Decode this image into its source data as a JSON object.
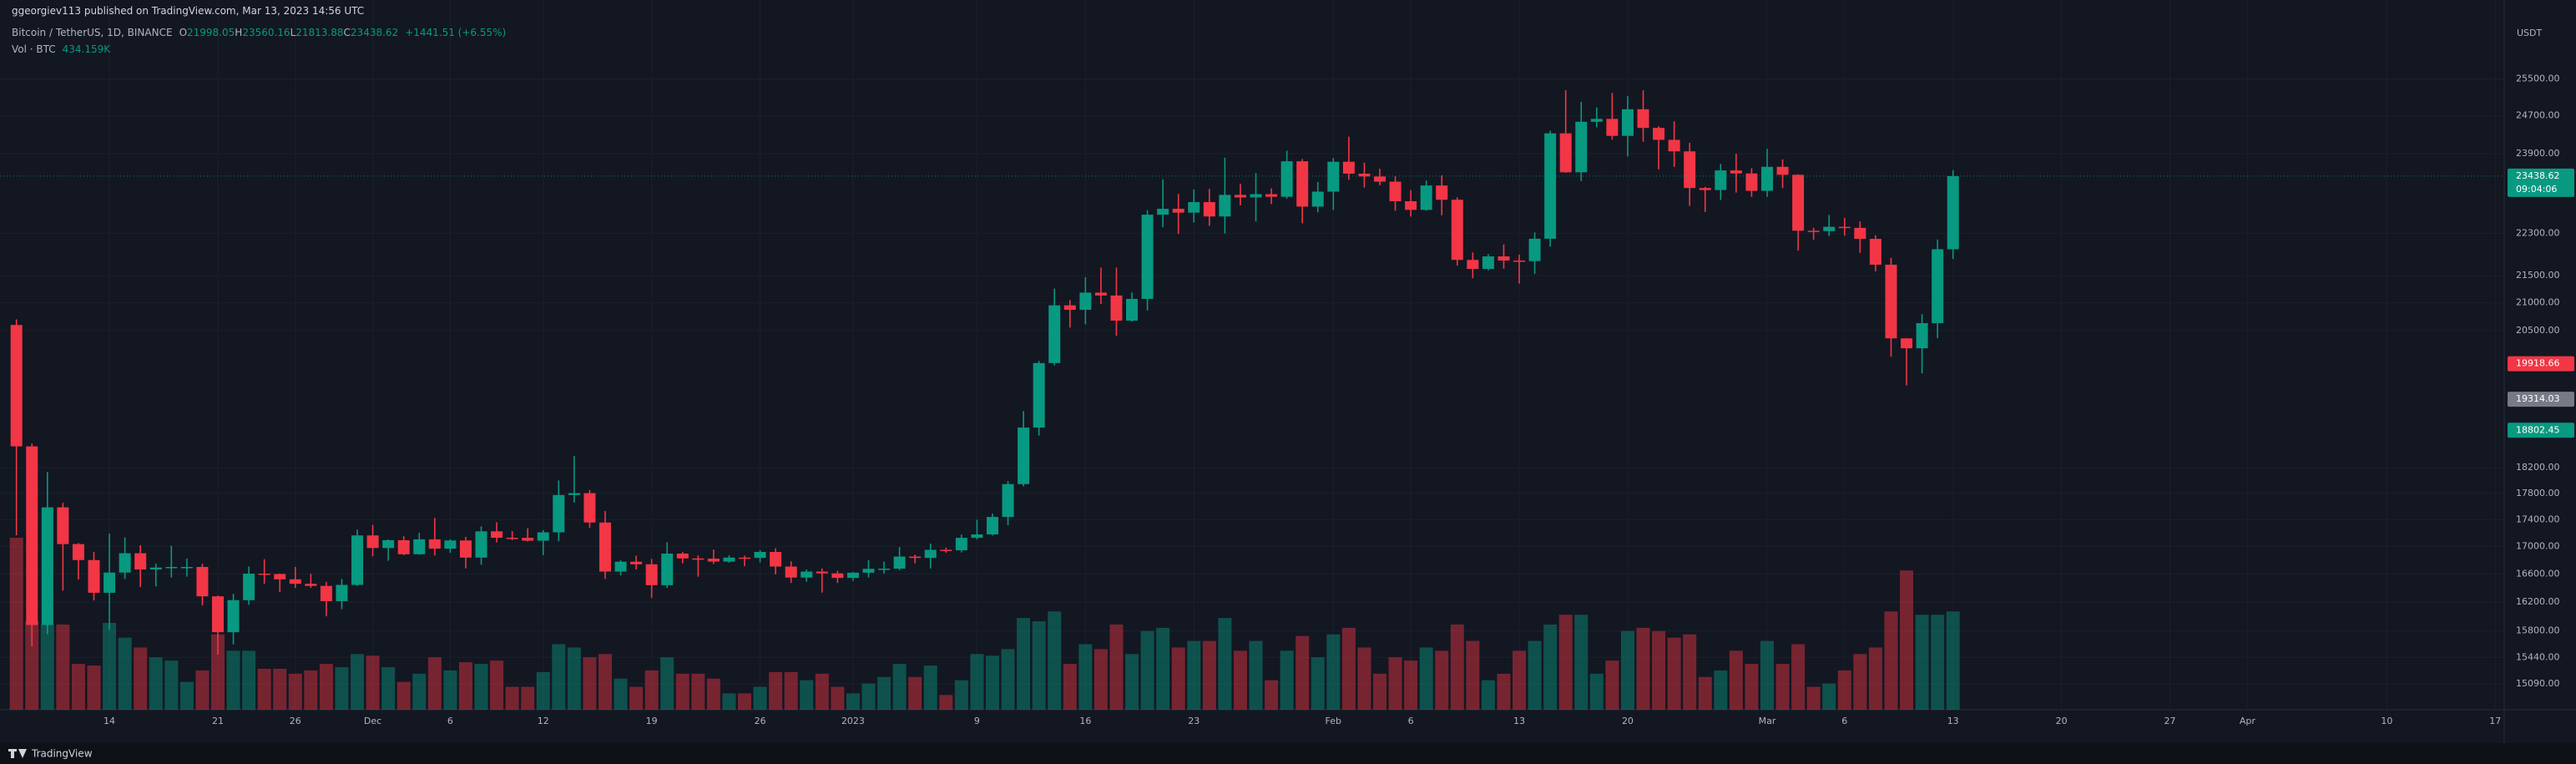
{
  "header": {
    "publisher": "ggeorgiev113 published on TradingView.com, Mar 13, 2023 14:56 UTC",
    "symbol": "Bitcoin / TetherUS, 1D, BINANCE",
    "fields": [
      {
        "key": "O",
        "value": "21998.05"
      },
      {
        "key": "H",
        "value": "23560.16"
      },
      {
        "key": "L",
        "value": "21813.88"
      },
      {
        "key": "C",
        "value": "23438.62"
      }
    ],
    "change": "+1441.51 (+6.55%)",
    "volume_label": "Vol · BTC",
    "volume_value": "434.159K"
  },
  "footer": {
    "brand": "TradingView"
  },
  "chart_data": {
    "type": "candlestick",
    "currency": "USDT",
    "up_color": "#089981",
    "down_color": "#f23645",
    "log": true,
    "grid": true,
    "ylim": [
      14755,
      27306
    ],
    "yticks": [
      {
        "value": 25500,
        "label": "25500.00"
      },
      {
        "value": 24700,
        "label": "24700.00"
      },
      {
        "value": 23900,
        "label": "23900.00"
      },
      {
        "value": 22300,
        "label": "22300.00"
      },
      {
        "value": 21500,
        "label": "21500.00"
      },
      {
        "value": 21000,
        "label": "21000.00"
      },
      {
        "value": 20500,
        "label": "20500.00"
      },
      {
        "value": 18200,
        "label": "18200.00"
      },
      {
        "value": 17800,
        "label": "17800.00"
      },
      {
        "value": 17400,
        "label": "17400.00"
      },
      {
        "value": 17000,
        "label": "17000.00"
      },
      {
        "value": 16600,
        "label": "16600.00"
      },
      {
        "value": 16200,
        "label": "16200.00"
      },
      {
        "value": 15800,
        "label": "15800.00"
      },
      {
        "value": 15440,
        "label": "15440.00"
      },
      {
        "value": 15090,
        "label": "15090.00"
      }
    ],
    "xticks": [
      {
        "value": "2022-11-14",
        "label": "14"
      },
      {
        "value": "2022-11-21",
        "label": "21"
      },
      {
        "value": "2022-11-26",
        "label": "26"
      },
      {
        "value": "2022-12-01",
        "label": "Dec"
      },
      {
        "value": "2022-12-06",
        "label": "6"
      },
      {
        "value": "2022-12-12",
        "label": "12"
      },
      {
        "value": "2022-12-19",
        "label": "19"
      },
      {
        "value": "2022-12-26",
        "label": "26"
      },
      {
        "value": "2023-01-01",
        "label": "2023"
      },
      {
        "value": "2023-01-09",
        "label": "9"
      },
      {
        "value": "2023-01-16",
        "label": "16"
      },
      {
        "value": "2023-01-23",
        "label": "23"
      },
      {
        "value": "2023-02-01",
        "label": "Feb"
      },
      {
        "value": "2023-02-06",
        "label": "6"
      },
      {
        "value": "2023-02-13",
        "label": "13"
      },
      {
        "value": "2023-02-20",
        "label": "20"
      },
      {
        "value": "2023-03-01",
        "label": "Mar"
      },
      {
        "value": "2023-03-06",
        "label": "6"
      },
      {
        "value": "2023-03-13",
        "label": "13"
      },
      {
        "value": "2023-03-20",
        "label": "20"
      },
      {
        "value": "2023-03-27",
        "label": "27"
      },
      {
        "value": "2023-04-01",
        "label": "Apr"
      },
      {
        "value": "2023-04-10",
        "label": "10"
      },
      {
        "value": "2023-04-17",
        "label": "17"
      }
    ],
    "price_labels": [
      {
        "value": 23438.62,
        "color": "#089981",
        "countdown": "09:04:06"
      },
      {
        "value": 19918.66,
        "color": "#f23645"
      },
      {
        "value": 19314.03,
        "color": "#787b86"
      },
      {
        "value": 18802.45,
        "color": "#089981"
      }
    ],
    "x": [
      "2022-11-08",
      "2022-11-09",
      "2022-11-10",
      "2022-11-11",
      "2022-11-12",
      "2022-11-13",
      "2022-11-14",
      "2022-11-15",
      "2022-11-16",
      "2022-11-17",
      "2022-11-18",
      "2022-11-19",
      "2022-11-20",
      "2022-11-21",
      "2022-11-22",
      "2022-11-23",
      "2022-11-24",
      "2022-11-25",
      "2022-11-26",
      "2022-11-27",
      "2022-11-28",
      "2022-11-29",
      "2022-11-30",
      "2022-12-01",
      "2022-12-02",
      "2022-12-03",
      "2022-12-04",
      "2022-12-05",
      "2022-12-06",
      "2022-12-07",
      "2022-12-08",
      "2022-12-09",
      "2022-12-10",
      "2022-12-11",
      "2022-12-12",
      "2022-12-13",
      "2022-12-14",
      "2022-12-15",
      "2022-12-16",
      "2022-12-17",
      "2022-12-18",
      "2022-12-19",
      "2022-12-20",
      "2022-12-21",
      "2022-12-22",
      "2022-12-23",
      "2022-12-24",
      "2022-12-25",
      "2022-12-26",
      "2022-12-27",
      "2022-12-28",
      "2022-12-29",
      "2022-12-30",
      "2022-12-31",
      "2023-01-01",
      "2023-01-02",
      "2023-01-03",
      "2023-01-04",
      "2023-01-05",
      "2023-01-06",
      "2023-01-07",
      "2023-01-08",
      "2023-01-09",
      "2023-01-10",
      "2023-01-11",
      "2023-01-12",
      "2023-01-13",
      "2023-01-14",
      "2023-01-15",
      "2023-01-16",
      "2023-01-17",
      "2023-01-18",
      "2023-01-19",
      "2023-01-20",
      "2023-01-21",
      "2023-01-22",
      "2023-01-23",
      "2023-01-24",
      "2023-01-25",
      "2023-01-26",
      "2023-01-27",
      "2023-01-28",
      "2023-01-29",
      "2023-01-30",
      "2023-01-31",
      "2023-02-01",
      "2023-02-02",
      "2023-02-03",
      "2023-02-04",
      "2023-02-05",
      "2023-02-06",
      "2023-02-07",
      "2023-02-08",
      "2023-02-09",
      "2023-02-10",
      "2023-02-11",
      "2023-02-12",
      "2023-02-13",
      "2023-02-14",
      "2023-02-15",
      "2023-02-16",
      "2023-02-17",
      "2023-02-18",
      "2023-02-19",
      "2023-02-20",
      "2023-02-21",
      "2023-02-22",
      "2023-02-23",
      "2023-02-24",
      "2023-02-25",
      "2023-02-26",
      "2023-02-27",
      "2023-02-28",
      "2023-03-01",
      "2023-03-02",
      "2023-03-03",
      "2023-03-04",
      "2023-03-05",
      "2023-03-06",
      "2023-03-07",
      "2023-03-08",
      "2023-03-09",
      "2023-03-10",
      "2023-03-11",
      "2023-03-12",
      "2023-03-13"
    ],
    "open": [
      20600,
      18541,
      15880,
      17586,
      17034,
      16800,
      16330,
      16619,
      16900,
      16663,
      16692,
      16700,
      16700,
      16280,
      15781,
      16226,
      16603,
      16598,
      16522,
      16458,
      16428,
      16212,
      16442,
      17163,
      16977,
      17092,
      16885,
      17105,
      16967,
      17088,
      16836,
      17224,
      17128,
      17127,
      17085,
      17209,
      17775,
      17804,
      17356,
      16633,
      16776,
      16739,
      16438,
      16895,
      16824,
      16821,
      16778,
      16836,
      16832,
      16919,
      16706,
      16547,
      16633,
      16607,
      16542,
      16617,
      16673,
      16675,
      16851,
      16831,
      16950,
      16943,
      17127,
      17178,
      17440,
      17944,
      18846,
      19930,
      20954,
      20872,
      21186,
      21133,
      20677,
      21071,
      22667,
      22783,
      22707,
      22916,
      22632,
      23060,
      23009,
      23074,
      23022,
      23742,
      22827,
      23125,
      23732,
      23488,
      23431,
      23326,
      22933,
      22762,
      23249,
      22963,
      21796,
      21625,
      21862,
      21783,
      21773,
      22199,
      24324,
      23517,
      24569,
      24631,
      24271,
      24838,
      24439,
      24188,
      23947,
      23198,
      23157,
      23554,
      23492,
      23141,
      23628,
      23465,
      22354,
      22346,
      22430,
      22410,
      22197,
      21705,
      20362,
      20187,
      20632,
      21998.05
    ],
    "high": [
      20700,
      18587,
      18132,
      17655,
      17049,
      16920,
      17190,
      17134,
      17019,
      16747,
      17011,
      16820,
      16746,
      16292,
      16315,
      16706,
      16812,
      16605,
      16701,
      16600,
      16485,
      16525,
      17250,
      17320,
      17105,
      17150,
      17203,
      17424,
      17107,
      17142,
      17299,
      17360,
      17227,
      17270,
      17241,
      18000,
      18387,
      17854,
      17531,
      16796,
      16864,
      16816,
      17061,
      16917,
      16866,
      16954,
      16869,
      16865,
      16944,
      16972,
      16783,
      16664,
      16677,
      16644,
      16628,
      16799,
      16778,
      16991,
      16879,
      17041,
      16981,
      17176,
      17398,
      17491,
      17990,
      19117,
      19966,
      21258,
      21050,
      21474,
      21650,
      21650,
      21188,
      22755,
      23371,
      23078,
      23170,
      23180,
      23816,
      23282,
      23500,
      23189,
      23960,
      23789,
      23320,
      23812,
      24255,
      23715,
      23587,
      23433,
      23158,
      23350,
      23453,
      23011,
      21938,
      21906,
      22090,
      21894,
      22320,
      24380,
      25250,
      24998,
      24877,
      25192,
      25121,
      25250,
      24476,
      24580,
      24124,
      23220,
      23689,
      23897,
      23600,
      24000,
      23780,
      23476,
      22410,
      22662,
      22603,
      22535,
      22267,
      21834,
      20367,
      20792,
      22185,
      23560.16
    ],
    "low": [
      17166,
      15588,
      15754,
      16361,
      16520,
      16222,
      15815,
      16527,
      16412,
      16421,
      16547,
      16560,
      16152,
      15476,
      15616,
      16160,
      16458,
      16342,
      16400,
      16400,
      16000,
      16100,
      16428,
      16855,
      16790,
      16871,
      16878,
      16867,
      16906,
      16678,
      16733,
      17058,
      17092,
      17071,
      16871,
      17076,
      17660,
      17275,
      16527,
      16580,
      16663,
      16256,
      16398,
      16751,
      16560,
      16743,
      16760,
      16710,
      16764,
      16592,
      16470,
      16488,
      16333,
      16470,
      16499,
      16548,
      16605,
      16652,
      16753,
      16679,
      16908,
      16911,
      17104,
      17162,
      17315,
      17910,
      18714,
      19889,
      20552,
      20611,
      20978,
      20407,
      20659,
      20861,
      22422,
      22292,
      22513,
      22450,
      22300,
      22850,
      22534,
      22878,
      22985,
      22500,
      22714,
      22760,
      23363,
      23206,
      23253,
      22745,
      22628,
      22745,
      22655,
      21688,
      21451,
      21599,
      21630,
      21351,
      21532,
      22047,
      23505,
      23339,
      24450,
      24192,
      23840,
      24148,
      23574,
      23627,
      22841,
      22722,
      22959,
      23106,
      23020,
      23020,
      23195,
      21971,
      22180,
      22250,
      22258,
      21927,
      21580,
      20040,
      19549,
      19750,
      20367,
      21813.88
    ],
    "close": [
      18541,
      15880,
      17586,
      17034,
      16800,
      16330,
      16619,
      16900,
      16663,
      16692,
      16700,
      16700,
      16280,
      15781,
      16226,
      16603,
      16598,
      16522,
      16458,
      16428,
      16212,
      16442,
      17163,
      16977,
      17092,
      16885,
      17105,
      16967,
      17088,
      16836,
      17224,
      17128,
      17127,
      17085,
      17209,
      17775,
      17804,
      17356,
      16633,
      16776,
      16739,
      16438,
      16895,
      16824,
      16821,
      16778,
      16836,
      16832,
      16919,
      16706,
      16547,
      16633,
      16607,
      16542,
      16617,
      16673,
      16675,
      16851,
      16831,
      16950,
      16943,
      17127,
      17178,
      17440,
      17944,
      18846,
      19930,
      20954,
      20872,
      21186,
      21133,
      20677,
      21071,
      22667,
      22783,
      22707,
      22916,
      22632,
      23060,
      23009,
      23074,
      23022,
      23742,
      22827,
      23125,
      23732,
      23488,
      23431,
      23326,
      22933,
      22762,
      23249,
      22963,
      21796,
      21625,
      21862,
      21783,
      21773,
      22199,
      24324,
      23517,
      24569,
      24631,
      24271,
      24838,
      24439,
      24188,
      23947,
      23198,
      23157,
      23554,
      23492,
      23141,
      23628,
      23465,
      22354,
      22346,
      22430,
      22410,
      22197,
      21705,
      20362,
      20187,
      20632,
      21998.05,
      23438.62
    ],
    "volume": [
      759780,
      390744,
      376272,
      376272,
      202608,
      195372,
      383508,
      318384,
      274968,
      231552,
      217080,
      123012,
      173664,
      332856,
      260496,
      260496,
      180900,
      180900,
      159192,
      173664,
      202608,
      188136,
      246024,
      238788,
      188136,
      123012,
      159192,
      231552,
      173664,
      209844,
      202608,
      217080,
      101304,
      101304,
      166428,
      289440,
      274968,
      231552,
      246024,
      137484,
      101304,
      173664,
      231552,
      159192,
      159192,
      137484,
      72360,
      72360,
      101304,
      166428,
      166428,
      130248,
      159192,
      101304,
      72360,
      115776,
      144720,
      202608,
      144720,
      195372,
      65124,
      130248,
      246024,
      238788,
      267732,
      405216,
      390744,
      434160,
      202608,
      289440,
      267732,
      376272,
      246024,
      347328,
      361800,
      274968,
      303912,
      303912,
      405216,
      260496,
      303912,
      130248,
      260496,
      325620,
      231552,
      332856,
      361800,
      274968,
      159192,
      231552,
      217080,
      274968,
      260496,
      376272,
      303912,
      130248,
      159192,
      260496,
      303912,
      376272,
      419688,
      419688,
      159192,
      217080,
      347328,
      361800,
      347328,
      318384,
      332856,
      144720,
      173664,
      260496,
      202608,
      303912,
      202608,
      289440,
      101304,
      115776,
      173664,
      246024,
      274968,
      434160,
      615060,
      419688,
      419688,
      434159
    ]
  }
}
